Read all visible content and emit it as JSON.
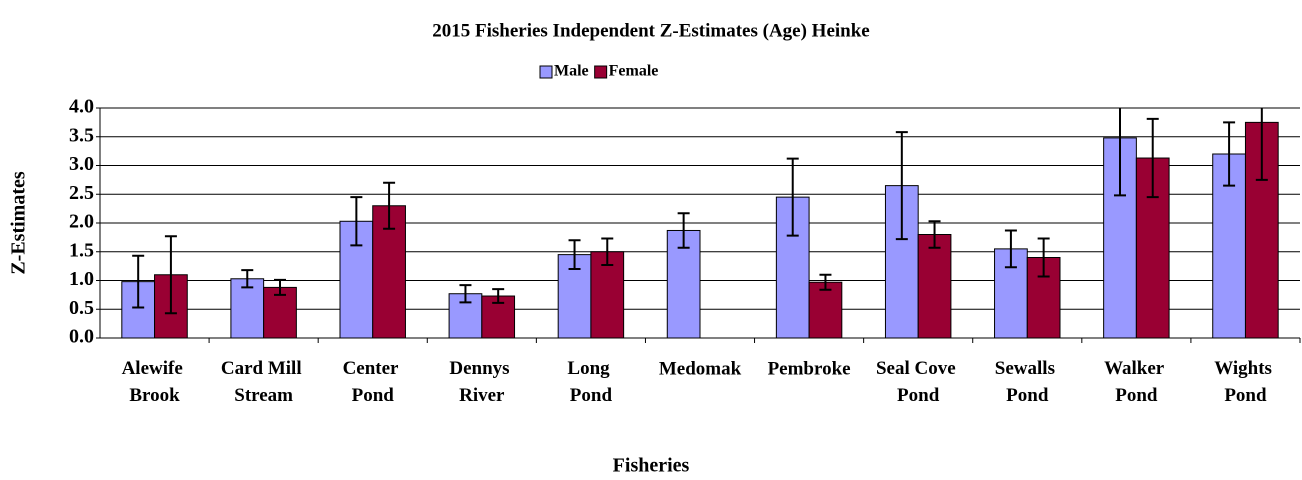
{
  "chart_data": {
    "type": "bar",
    "title": "2015 Fisheries Independent Z-Estimates (Age) Heinke",
    "x_label": "Fisheries",
    "y_label": "Z-Estimates",
    "categories": [
      "Alewife Brook",
      "Card Mill Stream",
      "Center Pond",
      "Dennys River",
      "Long Pond",
      "Medomak",
      "Pembroke",
      "Seal Cove Pond",
      "Sewalls Pond",
      "Walker Pond",
      "Wights Pond"
    ],
    "series": [
      {
        "name": "Male",
        "color": "#9999ff",
        "values": [
          0.98,
          1.03,
          2.03,
          0.77,
          1.45,
          1.87,
          2.45,
          2.65,
          1.55,
          3.48,
          3.2
        ],
        "errors": [
          0.45,
          0.15,
          0.42,
          0.15,
          0.25,
          0.3,
          0.67,
          0.93,
          0.32,
          1.0,
          0.55
        ]
      },
      {
        "name": "Female",
        "color": "#990033",
        "values": [
          1.1,
          0.88,
          2.3,
          0.73,
          1.5,
          null,
          0.97,
          1.8,
          1.4,
          3.13,
          3.75
        ],
        "errors": [
          0.67,
          0.13,
          0.4,
          0.12,
          0.23,
          null,
          0.13,
          0.23,
          0.33,
          0.68,
          1.0
        ]
      }
    ],
    "ylim": [
      0,
      4
    ],
    "yticks": [
      {
        "value": 0,
        "label": "0.0"
      },
      0.5,
      {
        "value": 1,
        "label": "1.0"
      },
      1.5,
      {
        "value": 2,
        "label": "2.0"
      },
      2.5,
      {
        "value": 3,
        "label": "3.0"
      },
      3.5,
      {
        "value": 4,
        "label": "4.0"
      }
    ],
    "grid": true,
    "legend": "top"
  }
}
